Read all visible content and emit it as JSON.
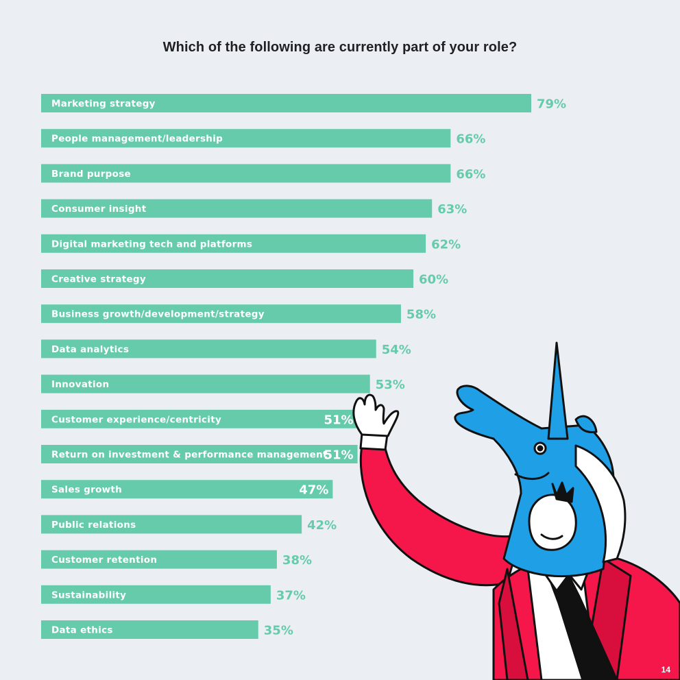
{
  "page": {
    "number": "14"
  },
  "colors": {
    "bar": "#66cbab",
    "value_outside": "#66cbab",
    "value_inside": "#ffffff"
  },
  "chart_data": {
    "type": "bar",
    "orientation": "horizontal",
    "title": "Which of the following are currently part of your role?",
    "categories": [
      "Marketing strategy",
      "People management/leadership",
      "Brand purpose",
      "Consumer insight",
      "Digital marketing tech and platforms",
      "Creative strategy",
      "Business growth/development/strategy",
      "Data analytics",
      "Innovation",
      "Customer experience/centricity",
      "Return on investment & performance management",
      "Sales growth",
      "Public relations",
      "Customer retention",
      "Sustainability",
      "Data ethics"
    ],
    "values": [
      79,
      66,
      66,
      63,
      62,
      60,
      58,
      54,
      53,
      51,
      51,
      47,
      42,
      38,
      37,
      35
    ],
    "value_labels": [
      "79%",
      "66%",
      "66%",
      "63%",
      "62%",
      "60%",
      "58%",
      "54%",
      "53%",
      "51%",
      "51%",
      "47%",
      "42%",
      "38%",
      "37%",
      "35%"
    ],
    "value_inside_bar": [
      false,
      false,
      false,
      false,
      false,
      false,
      false,
      false,
      false,
      true,
      true,
      true,
      false,
      false,
      false,
      false
    ],
    "xlim": [
      0,
      100
    ],
    "grid": false,
    "legend": "none"
  },
  "illustration": {
    "name": "unicorn-mascot",
    "description_hidden": true
  }
}
